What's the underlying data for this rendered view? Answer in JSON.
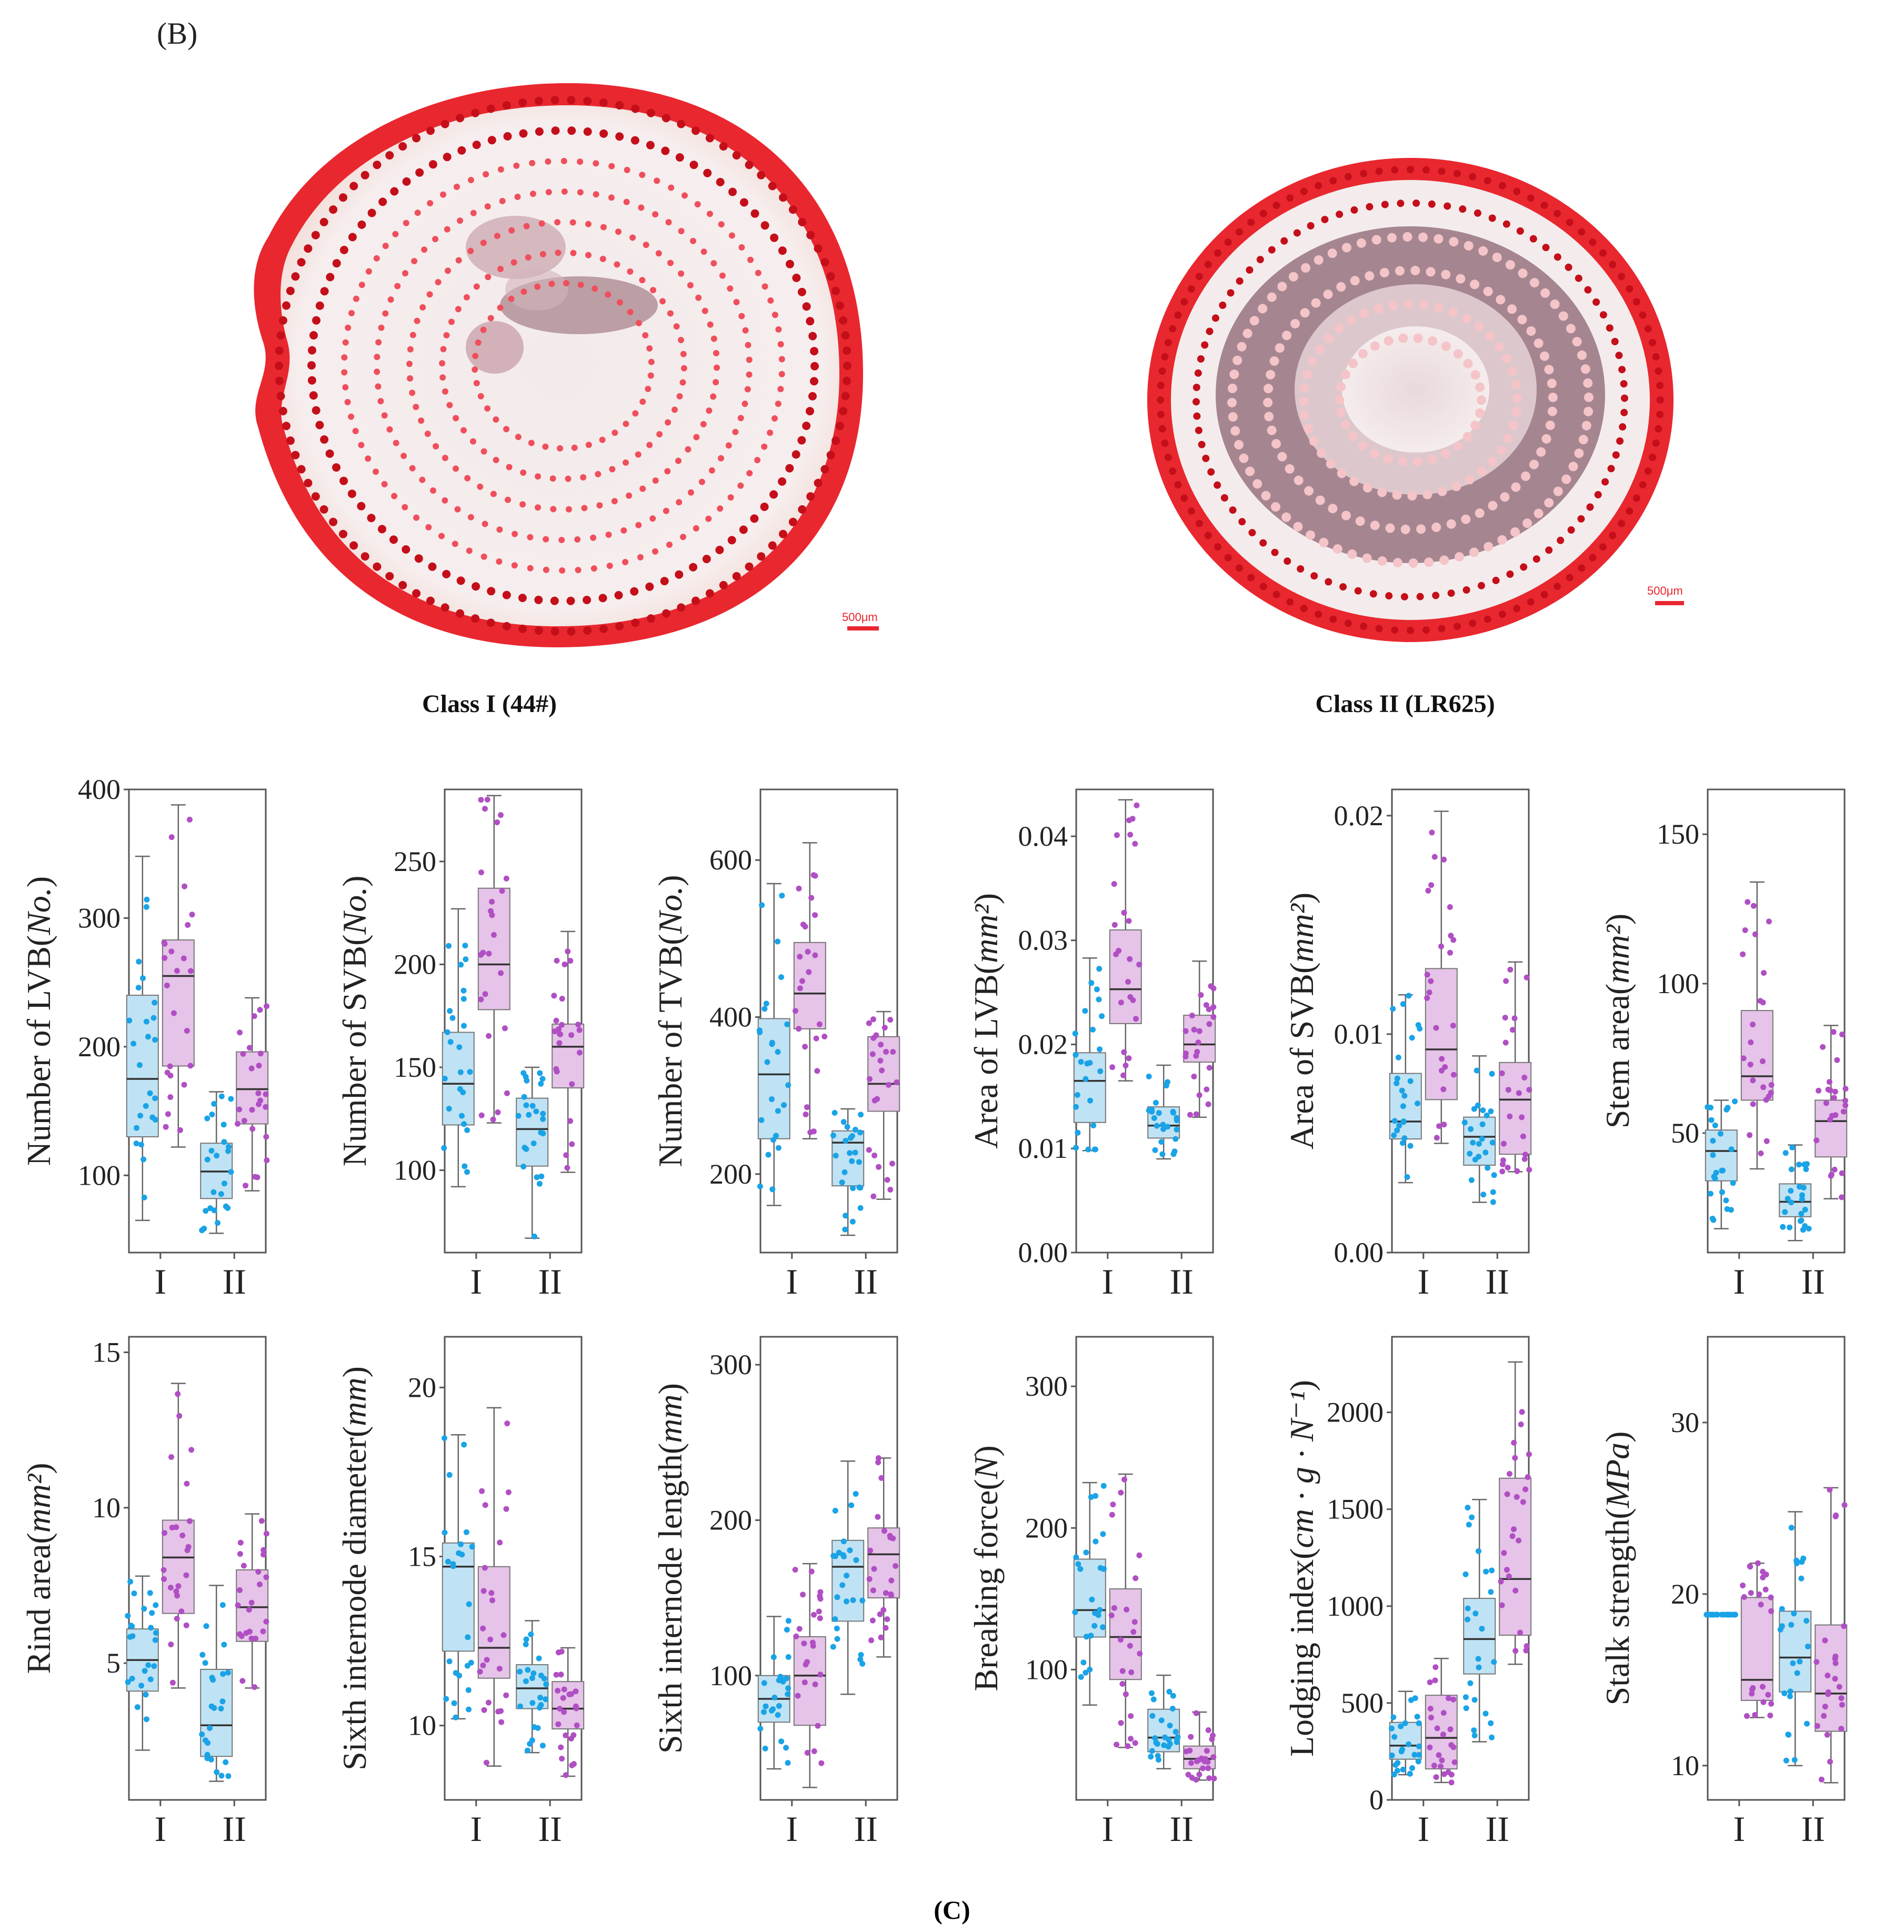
{
  "panel_b_label": "(B)",
  "panel_c_label": "(C)",
  "photos": [
    {
      "caption": "Class I (44#)",
      "scale_bar": "500μm"
    },
    {
      "caption": "Class II (LR625)",
      "scale_bar": "500μm"
    }
  ],
  "colors": {
    "class_blue_points": "#1aa3e6",
    "class_blue_box": "#bfe3f5",
    "class_pink_points": "#b04fc4",
    "class_pink_box": "#e6c3e8",
    "rind_red": "#e8262f",
    "pith_light": "#f4ecec",
    "pith_dark": "#a07d84"
  },
  "chart_data": [
    {
      "type": "box",
      "title": "",
      "ylabel_main": "Number of LVB",
      "ylabel_unit": "No.",
      "unit_italic": true,
      "ylim": [
        40,
        400
      ],
      "yticks": [
        100,
        200,
        300,
        400
      ],
      "categories": [
        "I",
        "II"
      ],
      "groups": [
        {
          "cat": "I",
          "color": "blue",
          "min": 65,
          "q1": 130,
          "median": 175,
          "q3": 240,
          "max": 348
        },
        {
          "cat": "I",
          "color": "pink",
          "min": 122,
          "q1": 185,
          "median": 255,
          "q3": 283,
          "max": 388
        },
        {
          "cat": "II",
          "color": "blue",
          "min": 55,
          "q1": 82,
          "median": 103,
          "q3": 125,
          "max": 165
        },
        {
          "cat": "II",
          "color": "pink",
          "min": 88,
          "q1": 140,
          "median": 167,
          "q3": 196,
          "max": 238
        }
      ]
    },
    {
      "type": "box",
      "title": "",
      "ylabel_main": "Number of SVB",
      "ylabel_unit": "No.",
      "unit_italic": true,
      "ylim": [
        60,
        285
      ],
      "yticks": [
        100,
        150,
        200,
        250
      ],
      "categories": [
        "I",
        "II"
      ],
      "groups": [
        {
          "cat": "I",
          "color": "blue",
          "min": 92,
          "q1": 122,
          "median": 142,
          "q3": 167,
          "max": 227
        },
        {
          "cat": "I",
          "color": "pink",
          "min": 123,
          "q1": 178,
          "median": 200,
          "q3": 237,
          "max": 282
        },
        {
          "cat": "II",
          "color": "blue",
          "min": 67,
          "q1": 102,
          "median": 120,
          "q3": 135,
          "max": 150
        },
        {
          "cat": "II",
          "color": "pink",
          "min": 99,
          "q1": 140,
          "median": 160,
          "q3": 171,
          "max": 216
        }
      ]
    },
    {
      "type": "box",
      "title": "",
      "ylabel_main": "Number of TVB",
      "ylabel_unit": "No.",
      "unit_italic": true,
      "ylim": [
        100,
        690
      ],
      "yticks": [
        200,
        400,
        600
      ],
      "categories": [
        "I",
        "II"
      ],
      "groups": [
        {
          "cat": "I",
          "color": "blue",
          "min": 160,
          "q1": 245,
          "median": 327,
          "q3": 398,
          "max": 570
        },
        {
          "cat": "I",
          "color": "pink",
          "min": 245,
          "q1": 385,
          "median": 430,
          "q3": 495,
          "max": 622
        },
        {
          "cat": "II",
          "color": "blue",
          "min": 122,
          "q1": 185,
          "median": 240,
          "q3": 255,
          "max": 283
        },
        {
          "cat": "II",
          "color": "pink",
          "min": 168,
          "q1": 280,
          "median": 315,
          "q3": 375,
          "max": 407
        }
      ]
    },
    {
      "type": "box",
      "title": "",
      "ylabel_main": "Area of LVB",
      "ylabel_unit": "mm²",
      "unit_italic": true,
      "ylim": [
        0,
        0.0445
      ],
      "yticks": [
        0.0,
        0.01,
        0.02,
        0.03,
        0.04
      ],
      "categories": [
        "I",
        "II"
      ],
      "groups": [
        {
          "cat": "I",
          "color": "blue",
          "min": 0.0098,
          "q1": 0.0125,
          "median": 0.0165,
          "q3": 0.0192,
          "max": 0.0283
        },
        {
          "cat": "I",
          "color": "pink",
          "min": 0.0165,
          "q1": 0.022,
          "median": 0.0253,
          "q3": 0.031,
          "max": 0.0435
        },
        {
          "cat": "II",
          "color": "blue",
          "min": 0.009,
          "q1": 0.011,
          "median": 0.0122,
          "q3": 0.014,
          "max": 0.018
        },
        {
          "cat": "II",
          "color": "pink",
          "min": 0.013,
          "q1": 0.0183,
          "median": 0.02,
          "q3": 0.0228,
          "max": 0.028
        }
      ]
    },
    {
      "type": "box",
      "title": "",
      "ylabel_main": "Area of SVB",
      "ylabel_unit": "mm²",
      "unit_italic": true,
      "ylim": [
        0,
        0.0212
      ],
      "yticks": [
        0.0,
        0.01,
        0.02
      ],
      "categories": [
        "I",
        "II"
      ],
      "groups": [
        {
          "cat": "I",
          "color": "blue",
          "min": 0.0032,
          "q1": 0.0052,
          "median": 0.006,
          "q3": 0.0082,
          "max": 0.0118
        },
        {
          "cat": "I",
          "color": "pink",
          "min": 0.005,
          "q1": 0.007,
          "median": 0.0093,
          "q3": 0.013,
          "max": 0.0202
        },
        {
          "cat": "II",
          "color": "blue",
          "min": 0.0023,
          "q1": 0.004,
          "median": 0.0053,
          "q3": 0.0062,
          "max": 0.009
        },
        {
          "cat": "II",
          "color": "pink",
          "min": 0.0037,
          "q1": 0.0045,
          "median": 0.007,
          "q3": 0.0087,
          "max": 0.0133
        }
      ]
    },
    {
      "type": "box",
      "title": "",
      "ylabel_main": "Stem area",
      "ylabel_unit": "mm²",
      "unit_italic": true,
      "ylim": [
        10,
        165
      ],
      "yticks": [
        50,
        100,
        150
      ],
      "categories": [
        "I",
        "II"
      ],
      "groups": [
        {
          "cat": "I",
          "color": "blue",
          "min": 18,
          "q1": 34,
          "median": 44,
          "q3": 51,
          "max": 61
        },
        {
          "cat": "I",
          "color": "pink",
          "min": 38,
          "q1": 61,
          "median": 69,
          "q3": 91,
          "max": 134
        },
        {
          "cat": "II",
          "color": "blue",
          "min": 14,
          "q1": 22,
          "median": 27,
          "q3": 33,
          "max": 46
        },
        {
          "cat": "II",
          "color": "pink",
          "min": 28,
          "q1": 42,
          "median": 54,
          "q3": 61,
          "max": 86
        }
      ]
    },
    {
      "type": "box",
      "title": "",
      "ylabel_main": "Rind area",
      "ylabel_unit": "mm²",
      "unit_italic": true,
      "ylim": [
        0.6,
        15.5
      ],
      "yticks": [
        5,
        10,
        15
      ],
      "categories": [
        "I",
        "II"
      ],
      "groups": [
        {
          "cat": "I",
          "color": "blue",
          "min": 2.2,
          "q1": 4.1,
          "median": 5.1,
          "q3": 6.1,
          "max": 7.8
        },
        {
          "cat": "I",
          "color": "pink",
          "min": 4.2,
          "q1": 6.6,
          "median": 8.4,
          "q3": 9.6,
          "max": 14.0
        },
        {
          "cat": "II",
          "color": "blue",
          "min": 1.2,
          "q1": 2.0,
          "median": 3.0,
          "q3": 4.8,
          "max": 7.5
        },
        {
          "cat": "II",
          "color": "pink",
          "min": 4.2,
          "q1": 5.7,
          "median": 6.8,
          "q3": 8.0,
          "max": 9.8
        }
      ]
    },
    {
      "type": "box",
      "title": "",
      "ylabel_main": "Sixth internode diameter",
      "ylabel_unit": "mm",
      "unit_italic": true,
      "ylim": [
        7.8,
        21.5
      ],
      "yticks": [
        10,
        15,
        20
      ],
      "categories": [
        "I",
        "II"
      ],
      "groups": [
        {
          "cat": "I",
          "color": "blue",
          "min": 10.2,
          "q1": 12.2,
          "median": 14.7,
          "q3": 15.4,
          "max": 18.6
        },
        {
          "cat": "I",
          "color": "pink",
          "min": 8.8,
          "q1": 11.4,
          "median": 12.3,
          "q3": 14.7,
          "max": 19.4
        },
        {
          "cat": "II",
          "color": "blue",
          "min": 9.2,
          "q1": 10.5,
          "median": 11.1,
          "q3": 11.8,
          "max": 13.1
        },
        {
          "cat": "II",
          "color": "pink",
          "min": 8.5,
          "q1": 9.9,
          "median": 10.5,
          "q3": 11.3,
          "max": 12.3
        }
      ]
    },
    {
      "type": "box",
      "title": "",
      "ylabel_main": "Sixth internode length",
      "ylabel_unit": "mm",
      "unit_italic": true,
      "ylim": [
        20,
        318
      ],
      "yticks": [
        100,
        200,
        300
      ],
      "categories": [
        "I",
        "II"
      ],
      "groups": [
        {
          "cat": "I",
          "color": "blue",
          "min": 40,
          "q1": 70,
          "median": 85,
          "q3": 100,
          "max": 138
        },
        {
          "cat": "I",
          "color": "pink",
          "min": 28,
          "q1": 68,
          "median": 100,
          "q3": 125,
          "max": 172
        },
        {
          "cat": "II",
          "color": "blue",
          "min": 88,
          "q1": 135,
          "median": 170,
          "q3": 187,
          "max": 238
        },
        {
          "cat": "II",
          "color": "pink",
          "min": 112,
          "q1": 150,
          "median": 178,
          "q3": 195,
          "max": 240
        }
      ]
    },
    {
      "type": "box",
      "title": "",
      "ylabel_main": "Breaking force",
      "ylabel_unit": "N",
      "unit_italic": true,
      "ylim": [
        8,
        335
      ],
      "yticks": [
        100,
        200,
        300
      ],
      "categories": [
        "I",
        "II"
      ],
      "groups": [
        {
          "cat": "I",
          "color": "blue",
          "min": 75,
          "q1": 123,
          "median": 142,
          "q3": 178,
          "max": 232
        },
        {
          "cat": "I",
          "color": "pink",
          "min": 45,
          "q1": 93,
          "median": 123,
          "q3": 157,
          "max": 238
        },
        {
          "cat": "II",
          "color": "blue",
          "min": 30,
          "q1": 42,
          "median": 52,
          "q3": 72,
          "max": 96
        },
        {
          "cat": "II",
          "color": "pink",
          "min": 22,
          "q1": 30,
          "median": 37,
          "q3": 46,
          "max": 70
        }
      ]
    },
    {
      "type": "box",
      "title": "",
      "ylabel_main": "Lodging index",
      "ylabel_unit": "cm · g · N⁻¹",
      "unit_italic": true,
      "ylim": [
        0,
        2390
      ],
      "yticks": [
        0,
        500,
        1000,
        1500,
        2000
      ],
      "categories": [
        "I",
        "II"
      ],
      "groups": [
        {
          "cat": "I",
          "color": "blue",
          "min": 130,
          "q1": 210,
          "median": 280,
          "q3": 400,
          "max": 560
        },
        {
          "cat": "I",
          "color": "pink",
          "min": 90,
          "q1": 160,
          "median": 320,
          "q3": 540,
          "max": 730
        },
        {
          "cat": "II",
          "color": "blue",
          "min": 300,
          "q1": 650,
          "median": 830,
          "q3": 1040,
          "max": 1550
        },
        {
          "cat": "II",
          "color": "pink",
          "min": 700,
          "q1": 850,
          "median": 1140,
          "q3": 1660,
          "max": 2260
        }
      ]
    },
    {
      "type": "box",
      "title": "",
      "ylabel_main": "Stalk strength",
      "ylabel_unit": "MPa",
      "unit_italic": true,
      "ylim": [
        8,
        35
      ],
      "yticks": [
        10,
        20,
        30
      ],
      "categories": [
        "I",
        "II"
      ],
      "groups": [
        {
          "cat": "I",
          "color": "blue",
          "min": 18.8,
          "q1": 18.8,
          "median": 18.8,
          "q3": 18.8,
          "max": 18.8
        },
        {
          "cat": "I",
          "color": "pink",
          "min": 12.8,
          "q1": 13.8,
          "median": 15.0,
          "q3": 19.8,
          "max": 21.8
        },
        {
          "cat": "II",
          "color": "blue",
          "min": 10.0,
          "q1": 14.3,
          "median": 16.3,
          "q3": 19.0,
          "max": 24.8
        },
        {
          "cat": "II",
          "color": "pink",
          "min": 9.0,
          "q1": 12.0,
          "median": 14.2,
          "q3": 18.2,
          "max": 26.2
        }
      ]
    }
  ]
}
